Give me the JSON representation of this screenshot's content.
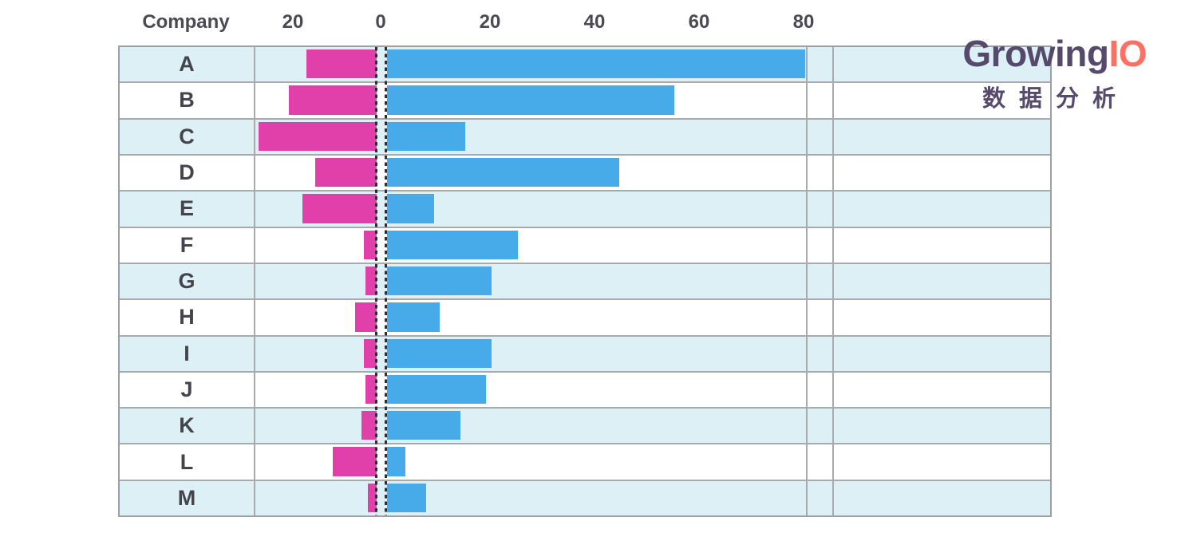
{
  "logo": {
    "brand_primary": "Growing",
    "brand_accent": "IO",
    "subtitle": "数据分析",
    "brand_primary_color": "#554a6b",
    "brand_accent_color": "#fe7162"
  },
  "chart_data": {
    "type": "bar",
    "variant": "diverging-horizontal",
    "title": "",
    "header_label": "Company",
    "categories": [
      "A",
      "B",
      "C",
      "D",
      "E",
      "F",
      "G",
      "H",
      "I",
      "J",
      "K",
      "L",
      "M"
    ],
    "series": [
      {
        "name": "left",
        "color": "#e13fa9",
        "values": [
          16,
          20,
          27,
          14,
          17,
          3,
          2.5,
          5,
          3,
          2.5,
          3.5,
          10,
          2
        ]
      },
      {
        "name": "right",
        "color": "#47aae9",
        "values": [
          80,
          55,
          15,
          44.5,
          9,
          25,
          20,
          10,
          20,
          19,
          14,
          3.5,
          7.5
        ]
      }
    ],
    "axis": {
      "ticks": [
        {
          "label": "20",
          "value": 20,
          "side": "left"
        },
        {
          "label": "0",
          "value": 0,
          "side": "zero"
        },
        {
          "label": "20",
          "value": 20,
          "side": "right"
        },
        {
          "label": "40",
          "value": 40,
          "side": "right"
        },
        {
          "label": "60",
          "value": 60,
          "side": "right"
        },
        {
          "label": "80",
          "value": 80,
          "side": "right"
        }
      ],
      "left_max": 29,
      "right_max": 80,
      "grid": false,
      "zero_line_style": "double-dashed"
    },
    "row_stripe_colors": {
      "odd": "#dcf0f6",
      "even": "#ffffff"
    },
    "legend": null
  }
}
